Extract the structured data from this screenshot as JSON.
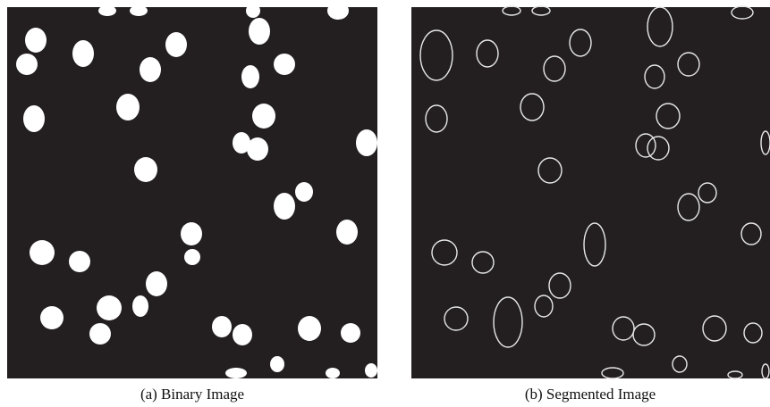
{
  "figure": {
    "panels": [
      {
        "caption": "(a) Binary Image"
      },
      {
        "caption": "(b) Segmented Image"
      }
    ]
  }
}
